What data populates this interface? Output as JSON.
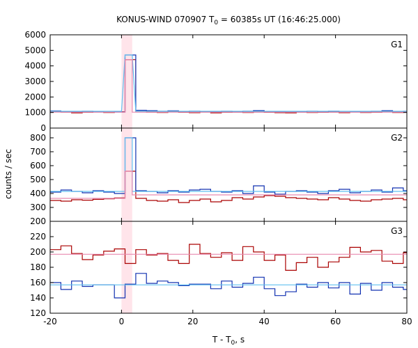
{
  "chart_data": {
    "type": "line",
    "title_main": "KONUS-WIND 070907 T",
    "title_sub": "0",
    "title_rest": " = 60385s UT (16:46:25.000)",
    "xlabel_main": "T - T",
    "xlabel_sub": "0",
    "xlabel_rest": ", s",
    "ylabel": "counts / sec",
    "xlim": [
      -20,
      80
    ],
    "x_ticks": [
      "-20",
      "0",
      "20",
      "40",
      "60",
      "80"
    ],
    "x_tick_values": [
      -20,
      0,
      20,
      40,
      60,
      80
    ],
    "highlight_interval": [
      0,
      3
    ],
    "colors": {
      "red": "#aa0000",
      "blue": "#1030b0",
      "cyan": "#60c0f0",
      "pink": "#e88ab0",
      "band": "#ffe4ea"
    },
    "panels": [
      {
        "label": "G1",
        "ylim": [
          0,
          6000
        ],
        "y_ticks": [
          "0",
          "1000",
          "2000",
          "3000",
          "4000",
          "5000",
          "6000"
        ],
        "y_tick_values": [
          0,
          1000,
          2000,
          3000,
          4000,
          5000,
          6000
        ],
        "grid": false,
        "series": [
          {
            "color": "red",
            "x": [
              -20,
              -17,
              -14,
              -11,
              -8,
              -5,
              -2,
              1,
              4,
              7,
              10,
              13,
              16,
              19,
              22,
              25,
              28,
              31,
              34,
              37,
              40,
              43,
              46,
              49,
              52,
              55,
              58,
              61,
              64,
              67,
              70,
              73,
              76,
              79
            ],
            "y": [
              1040,
              1020,
              980,
              1010,
              1030,
              1000,
              1050,
              4400,
              1060,
              1020,
              1000,
              1040,
              1010,
              990,
              1030,
              980,
              1010,
              1020,
              1000,
              1030,
              1010,
              990,
              980,
              1020,
              1000,
              1010,
              1020,
              990,
              1030,
              1000,
              1010,
              1040,
              1000,
              1020
            ]
          },
          {
            "color": "blue",
            "x": [
              -20,
              -17,
              -14,
              -11,
              -8,
              -5,
              -2,
              1,
              4,
              7,
              10,
              13,
              16,
              19,
              22,
              25,
              28,
              31,
              34,
              37,
              40,
              43,
              46,
              49,
              52,
              55,
              58,
              61,
              64,
              67,
              70,
              73,
              76,
              79
            ],
            "y": [
              1100,
              1060,
              1040,
              1080,
              1050,
              1070,
              1030,
              4700,
              1140,
              1120,
              1080,
              1110,
              1060,
              1090,
              1070,
              1050,
              1080,
              1060,
              1090,
              1130,
              1070,
              1050,
              1060,
              1040,
              1080,
              1050,
              1090,
              1070,
              1050,
              1060,
              1080,
              1120,
              1060,
              1080
            ]
          },
          {
            "color": "cyan",
            "x": [
              -20,
              -1,
              0,
              1,
              3,
              4,
              80
            ],
            "y": [
              1080,
              1080,
              1080,
              4700,
              4700,
              1080,
              1080
            ]
          },
          {
            "color": "pink",
            "x": [
              -20,
              1,
              1,
              3,
              3,
              80
            ],
            "y": [
              1020,
              1020,
              4400,
              4400,
              1020,
              1020
            ]
          }
        ]
      },
      {
        "label": "G2",
        "ylim": [
          200,
          870
        ],
        "y_ticks": [
          "200",
          "300",
          "400",
          "500",
          "600",
          "700",
          "800"
        ],
        "y_tick_values": [
          200,
          300,
          400,
          500,
          600,
          700,
          800
        ],
        "grid": false,
        "series": [
          {
            "color": "red",
            "x": [
              -20,
              -17,
              -14,
              -11,
              -8,
              -5,
              -2,
              1,
              4,
              7,
              10,
              13,
              16,
              19,
              22,
              25,
              28,
              31,
              34,
              37,
              40,
              43,
              46,
              49,
              52,
              55,
              58,
              61,
              64,
              67,
              70,
              73,
              76,
              79
            ],
            "y": [
              350,
              345,
              355,
              352,
              358,
              362,
              368,
              560,
              365,
              350,
              345,
              355,
              335,
              350,
              360,
              340,
              350,
              370,
              360,
              375,
              385,
              380,
              370,
              365,
              360,
              355,
              370,
              360,
              350,
              345,
              355,
              360,
              365,
              355
            ]
          },
          {
            "color": "blue",
            "x": [
              -20,
              -17,
              -14,
              -11,
              -8,
              -5,
              -2,
              1,
              4,
              7,
              10,
              13,
              16,
              19,
              22,
              25,
              28,
              31,
              34,
              37,
              40,
              43,
              46,
              49,
              52,
              55,
              58,
              61,
              64,
              67,
              70,
              73,
              76,
              79
            ],
            "y": [
              410,
              425,
              415,
              405,
              420,
              410,
              400,
              800,
              420,
              415,
              405,
              420,
              410,
              425,
              430,
              415,
              410,
              420,
              400,
              455,
              410,
              395,
              415,
              420,
              410,
              400,
              420,
              430,
              405,
              415,
              425,
              410,
              440,
              420
            ]
          },
          {
            "color": "cyan",
            "x": [
              -20,
              -1,
              1,
              1,
              3,
              3,
              80
            ],
            "y": [
              415,
              415,
              415,
              800,
              800,
              415,
              415
            ]
          },
          {
            "color": "pink",
            "x": [
              -20,
              1,
              1,
              3,
              3,
              80
            ],
            "y": [
              365,
              365,
              560,
              560,
              390,
              390
            ]
          }
        ]
      },
      {
        "label": "G3",
        "ylim": [
          120,
          240
        ],
        "y_ticks": [
          "120",
          "140",
          "160",
          "180",
          "200",
          "220"
        ],
        "y_tick_values": [
          120,
          140,
          160,
          180,
          200,
          220
        ],
        "grid": false,
        "series": [
          {
            "color": "red",
            "x": [
              -20,
              -17,
              -14,
              -11,
              -8,
              -5,
              -2,
              1,
              4,
              7,
              10,
              13,
              16,
              19,
              22,
              25,
              28,
              31,
              34,
              37,
              40,
              43,
              46,
              49,
              52,
              55,
              58,
              61,
              64,
              67,
              70,
              73,
              76,
              79
            ],
            "y": [
              203,
              208,
              198,
              190,
              196,
              201,
              204,
              185,
              203,
              196,
              198,
              189,
              185,
              210,
              198,
              193,
              199,
              189,
              207,
              200,
              189,
              196,
              176,
              186,
              193,
              180,
              187,
              193,
              206,
              200,
              202,
              188,
              185,
              199
            ]
          },
          {
            "color": "blue",
            "x": [
              -20,
              -17,
              -14,
              -11,
              -8,
              -5,
              -2,
              1,
              4,
              7,
              10,
              13,
              16,
              19,
              22,
              25,
              28,
              31,
              34,
              37,
              40,
              43,
              46,
              49,
              52,
              55,
              58,
              61,
              64,
              67,
              70,
              73,
              76,
              79
            ],
            "y": [
              160,
              151,
              162,
              155,
              157,
              157,
              140,
              158,
              172,
              159,
              162,
              160,
              156,
              158,
              158,
              152,
              162,
              154,
              159,
              167,
              152,
              143,
              148,
              158,
              154,
              160,
              153,
              160,
              145,
              159,
              150,
              160,
              154,
              151
            ]
          },
          {
            "color": "cyan",
            "x": [
              -20,
              80
            ],
            "y": [
              157,
              157
            ]
          },
          {
            "color": "pink",
            "x": [
              -20,
              80
            ],
            "y": [
              197,
              197
            ]
          }
        ]
      }
    ]
  }
}
